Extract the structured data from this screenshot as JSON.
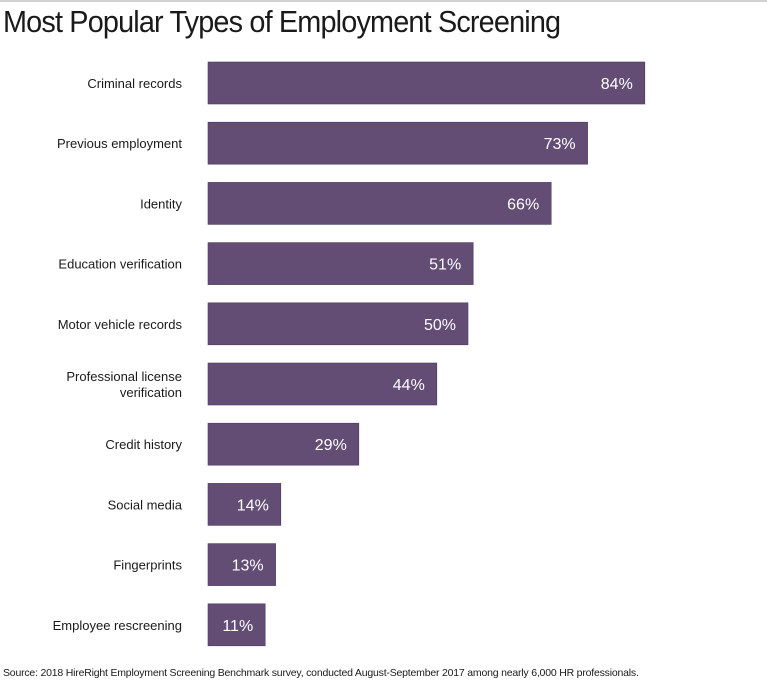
{
  "chart_data": {
    "type": "bar",
    "orientation": "horizontal",
    "title": "Most Popular Types of Employment Screening",
    "categories": [
      "Criminal records",
      "Previous employment",
      "Identity",
      "Education verification",
      "Motor vehicle records",
      "Professional license verification",
      "Credit history",
      "Social media",
      "Fingerprints",
      "Employee rescreening"
    ],
    "values": [
      84,
      73,
      66,
      51,
      50,
      44,
      29,
      14,
      13,
      11
    ],
    "data_labels": [
      "84%",
      "73%",
      "66%",
      "51%",
      "50%",
      "44%",
      "29%",
      "14%",
      "13%",
      "11%"
    ],
    "xlabel": "",
    "ylabel": "",
    "xlim": [
      0,
      100
    ],
    "grid": false,
    "bar_color": "#634d75",
    "label_color": "#ffffff"
  },
  "source": "Source: 2018 HireRight Employment Screening Benchmark survey, conducted August-September 2017 among nearly 6,000 HR professionals."
}
